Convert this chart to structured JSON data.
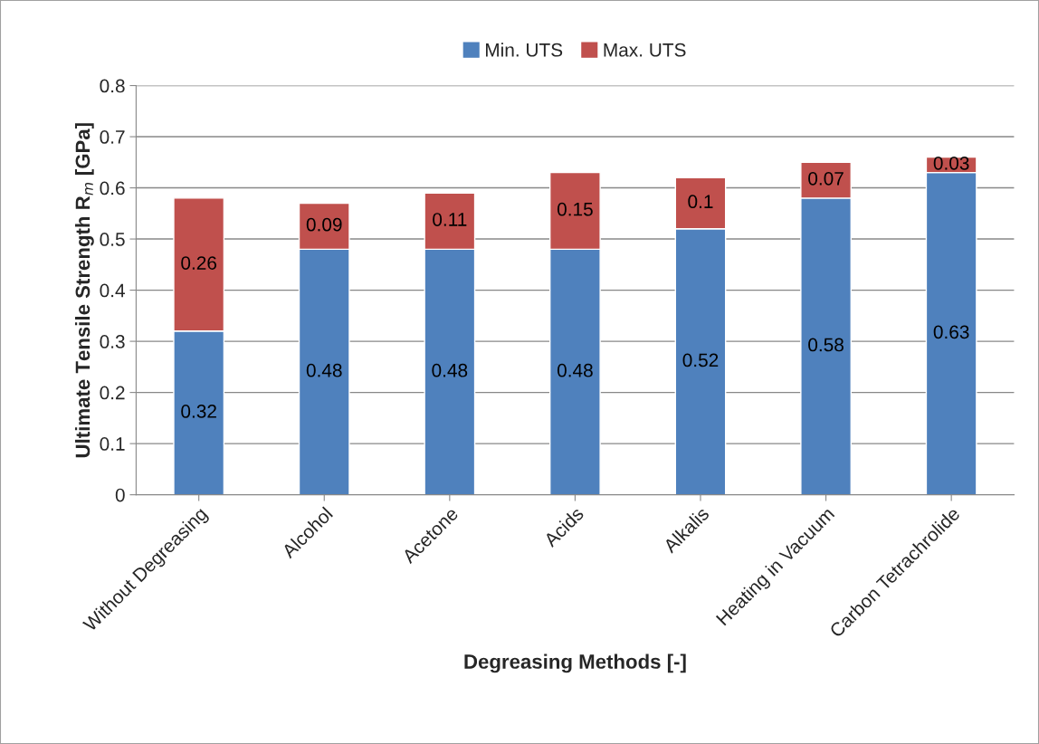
{
  "chart_data": {
    "type": "bar",
    "stacked": true,
    "xlabel": "Degreasing Methods [-]",
    "ylabel": "Ultimate Tensile Strength R$_{m}$ [GPa]",
    "categories": [
      "Without Degreasing",
      "Alcohol",
      "Acetone",
      "Acids",
      "Alkalis",
      "Heating in Vacuum",
      "Carbon Tetrachrolide"
    ],
    "series": [
      {
        "name": "Min. UTS",
        "color": "#4f81bd",
        "values": [
          0.32,
          0.48,
          0.48,
          0.48,
          0.52,
          0.58,
          0.63
        ]
      },
      {
        "name": "Max. UTS",
        "color": "#c0504d",
        "values": [
          0.26,
          0.09,
          0.11,
          0.15,
          0.1,
          0.07,
          0.03
        ]
      }
    ],
    "ylim": [
      0,
      0.8
    ],
    "yticks": [
      0,
      0.1,
      0.2,
      0.3,
      0.4,
      0.5,
      0.6,
      0.7,
      0.8
    ],
    "grid": "y",
    "legend": "top",
    "data_labels": true
  }
}
